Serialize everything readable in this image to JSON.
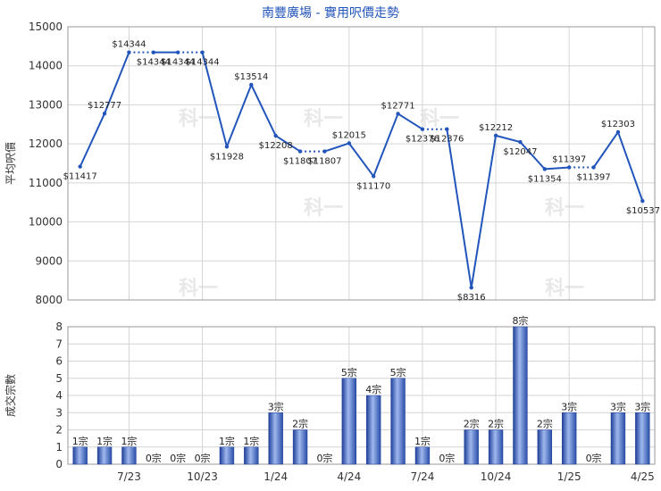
{
  "chart_data": [
    {
      "type": "line",
      "title": "南豐廣場 - 實用呎價走勢",
      "ylabel": "平均呎價",
      "ylim": [
        8000,
        15000
      ],
      "yticks": [
        8000,
        9000,
        10000,
        11000,
        12000,
        13000,
        14000,
        15000
      ],
      "xtick_labels": [
        "7/23",
        "10/23",
        "1/24",
        "4/24",
        "7/24",
        "10/24",
        "1/25",
        "4/25"
      ],
      "grid": true,
      "points": [
        {
          "v": 11417,
          "label": "$11417",
          "dotted_to_next": false
        },
        {
          "v": 12777,
          "label": "$12777",
          "dotted_to_next": false
        },
        {
          "v": 14344,
          "label": "$14344",
          "dotted_to_next": true
        },
        {
          "v": 14344,
          "label": "$14344",
          "dotted_to_next": false
        },
        {
          "v": 14344,
          "label": "$14344",
          "dotted_to_next": true
        },
        {
          "v": 14344,
          "label": "$14344",
          "dotted_to_next": false
        },
        {
          "v": 11928,
          "label": "$11928",
          "dotted_to_next": false
        },
        {
          "v": 13514,
          "label": "$13514",
          "dotted_to_next": false
        },
        {
          "v": 12208,
          "label": "$12208",
          "dotted_to_next": false
        },
        {
          "v": 11807,
          "label": "$11807",
          "dotted_to_next": true
        },
        {
          "v": 11807,
          "label": "$11807",
          "dotted_to_next": false
        },
        {
          "v": 12015,
          "label": "$12015",
          "dotted_to_next": false
        },
        {
          "v": 11170,
          "label": "$11170",
          "dotted_to_next": false
        },
        {
          "v": 12771,
          "label": "$12771",
          "dotted_to_next": false
        },
        {
          "v": 12376,
          "label": "$12376",
          "dotted_to_next": true
        },
        {
          "v": 12376,
          "label": "$12376",
          "dotted_to_next": false
        },
        {
          "v": 8316,
          "label": "$8316",
          "dotted_to_next": false
        },
        {
          "v": 12212,
          "label": "$12212",
          "dotted_to_next": false
        },
        {
          "v": 12047,
          "label": "$12047",
          "dotted_to_next": false
        },
        {
          "v": 11354,
          "label": "$11354",
          "dotted_to_next": false
        },
        {
          "v": 11397,
          "label": "$11397",
          "dotted_to_next": true
        },
        {
          "v": 11397,
          "label": "$11397",
          "dotted_to_next": false
        },
        {
          "v": 12303,
          "label": "$12303",
          "dotted_to_next": false
        },
        {
          "v": 10537,
          "label": "$10537",
          "dotted_to_next": false
        }
      ],
      "line_color": "#2255bb"
    },
    {
      "type": "bar",
      "ylabel": "成交宗數",
      "ylim": [
        0,
        8
      ],
      "yticks": [
        0,
        1,
        2,
        3,
        4,
        5,
        6,
        7,
        8
      ],
      "unit": "宗",
      "values": [
        1,
        1,
        1,
        0,
        0,
        0,
        1,
        1,
        3,
        2,
        0,
        5,
        4,
        5,
        1,
        0,
        2,
        2,
        8,
        2,
        3,
        0,
        3,
        3
      ],
      "bar_color": "#3366cc",
      "grid": true
    }
  ],
  "watermark": "科一"
}
